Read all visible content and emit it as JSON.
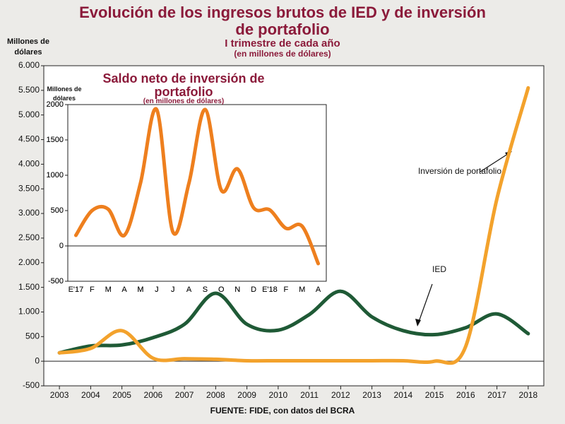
{
  "chart_data": [
    {
      "type": "line",
      "title": "Evolución de los ingresos brutos de IED y de inversión de portafolio",
      "subtitle": "I trimestre de cada año",
      "unit_note": "(en millones de dólares)",
      "y_label": "Millones de dólares",
      "source": "FUENTE: FIDE, con datos del BCRA",
      "x": [
        2003,
        2004,
        2005,
        2006,
        2007,
        2008,
        2009,
        2010,
        2011,
        2012,
        2013,
        2014,
        2015,
        2016,
        2017,
        2018
      ],
      "xlim": [
        2002.5,
        2018.5
      ],
      "xticks": [
        2003,
        2004,
        2005,
        2006,
        2007,
        2008,
        2009,
        2010,
        2011,
        2012,
        2013,
        2014,
        2015,
        2016,
        2017,
        2018
      ],
      "ylim": [
        -500,
        6000
      ],
      "yticks": [
        -500,
        0,
        500,
        {
          "value": 1000,
          "label": "1.000"
        },
        {
          "value": 1500,
          "label": "1.500"
        },
        {
          "value": 2000,
          "label": "2.000"
        },
        {
          "value": 2500,
          "label": "2.500"
        },
        {
          "value": 3000,
          "label": "3.000"
        },
        {
          "value": 3500,
          "label": "3.500"
        },
        {
          "value": 4000,
          "label": "4.000"
        },
        {
          "value": 4500,
          "label": "4.500"
        },
        {
          "value": 5000,
          "label": "5.000"
        },
        {
          "value": 5500,
          "label": "5.500"
        },
        {
          "value": 6000,
          "label": "6.000"
        }
      ],
      "series": [
        {
          "name": "IED",
          "color": "#1f5a36",
          "values": [
            170,
            310,
            330,
            480,
            750,
            1380,
            750,
            630,
            950,
            1420,
            900,
            620,
            540,
            680,
            960,
            560
          ]
        },
        {
          "name": "Inversión de portafolio",
          "color": "#f3a22c",
          "values": [
            170,
            260,
            620,
            60,
            50,
            40,
            10,
            10,
            10,
            10,
            10,
            10,
            0,
            300,
            3300,
            5550
          ]
        }
      ]
    },
    {
      "type": "line",
      "title": "Saldo neto de inversión de portafolio",
      "unit_note": "(en millones de dólares)",
      "y_label": "Millones de dólares",
      "categories": [
        "E'17",
        "F",
        "M",
        "A",
        "M",
        "J",
        "J",
        "A",
        "S",
        "O",
        "N",
        "D",
        "E'18",
        "F",
        "M",
        "A"
      ],
      "ylim": [
        -500,
        2000
      ],
      "yticks": [
        -500,
        0,
        500,
        1000,
        1500,
        2000
      ],
      "series": [
        {
          "color": "#ee7f1e",
          "values": [
            150,
            500,
            520,
            150,
            890,
            1930,
            200,
            890,
            1930,
            790,
            1090,
            540,
            510,
            250,
            280,
            -250
          ]
        }
      ]
    }
  ]
}
